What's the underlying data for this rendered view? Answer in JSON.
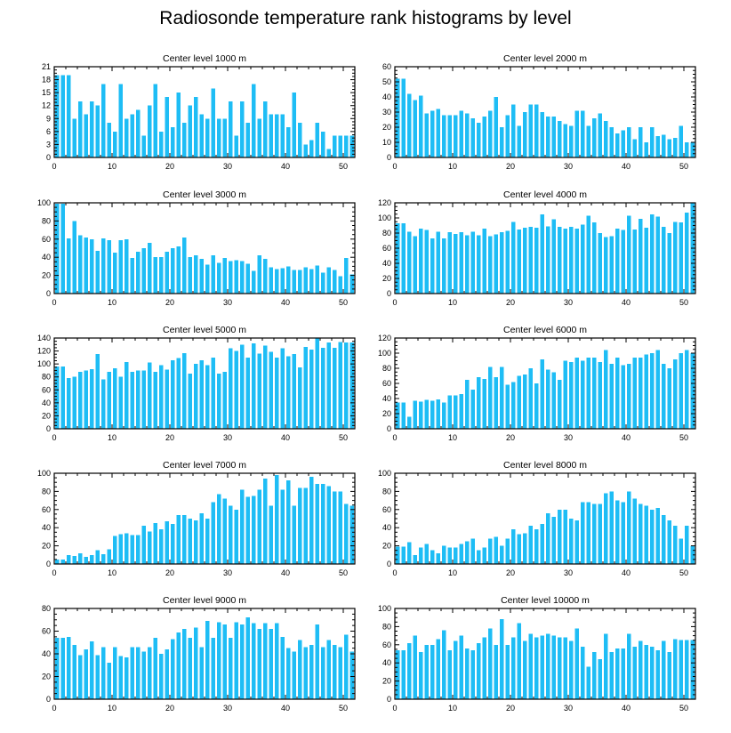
{
  "title": "Radiosonde temperature rank histograms by level",
  "colors": {
    "bar": "#1ebdf5",
    "frame": "#000000"
  },
  "chart_data": [
    {
      "type": "bar",
      "title": "Center level 1000 m",
      "xlim": [
        0,
        52
      ],
      "xticks": [
        0,
        10,
        20,
        30,
        40,
        50
      ],
      "ylim": [
        0,
        21
      ],
      "yticks": [
        0,
        3,
        6,
        9,
        12,
        15,
        18,
        21
      ],
      "x": [
        0,
        1,
        2,
        3,
        4,
        5,
        6,
        7,
        8,
        9,
        10,
        11,
        12,
        13,
        14,
        15,
        16,
        17,
        18,
        19,
        20,
        21,
        22,
        23,
        24,
        25,
        26,
        27,
        28,
        29,
        30,
        31,
        32,
        33,
        34,
        35,
        36,
        37,
        38,
        39,
        40,
        41,
        42,
        43,
        44,
        45,
        46,
        47,
        48,
        49,
        50,
        51
      ],
      "values": [
        19,
        19,
        19,
        9,
        13,
        10,
        13,
        12,
        17,
        8,
        6,
        17,
        9,
        10,
        11,
        5,
        12,
        17,
        6,
        14,
        7,
        15,
        8,
        12,
        14,
        10,
        9,
        16,
        9,
        9,
        13,
        5,
        13,
        8,
        17,
        9,
        13,
        10,
        10,
        10,
        7,
        15,
        8,
        3,
        4,
        8,
        6,
        2,
        5,
        5,
        5,
        5
      ]
    },
    {
      "type": "bar",
      "title": "Center level 2000 m",
      "xlim": [
        0,
        52
      ],
      "xticks": [
        0,
        10,
        20,
        30,
        40,
        50
      ],
      "ylim": [
        0,
        60
      ],
      "yticks": [
        0,
        10,
        20,
        30,
        40,
        50,
        60
      ],
      "x": [
        0,
        1,
        2,
        3,
        4,
        5,
        6,
        7,
        8,
        9,
        10,
        11,
        12,
        13,
        14,
        15,
        16,
        17,
        18,
        19,
        20,
        21,
        22,
        23,
        24,
        25,
        26,
        27,
        28,
        29,
        30,
        31,
        32,
        33,
        34,
        35,
        36,
        37,
        38,
        39,
        40,
        41,
        42,
        43,
        44,
        45,
        46,
        47,
        48,
        49,
        50,
        51
      ],
      "values": [
        52,
        52,
        42,
        38,
        41,
        29,
        31,
        32,
        28,
        28,
        28,
        31,
        29,
        26,
        23,
        27,
        31,
        40,
        20,
        28,
        35,
        21,
        30,
        35,
        35,
        30,
        27,
        27,
        24,
        22,
        21,
        31,
        31,
        21,
        26,
        29,
        24,
        20,
        16,
        18,
        20,
        12,
        20,
        10,
        20,
        14,
        15,
        12,
        13,
        21,
        10,
        10
      ]
    },
    {
      "type": "bar",
      "title": "Center level 3000 m",
      "xlim": [
        0,
        52
      ],
      "xticks": [
        0,
        10,
        20,
        30,
        40,
        50
      ],
      "ylim": [
        0,
        100
      ],
      "yticks": [
        0,
        20,
        40,
        60,
        80,
        100
      ],
      "x": [
        0,
        1,
        2,
        3,
        4,
        5,
        6,
        7,
        8,
        9,
        10,
        11,
        12,
        13,
        14,
        15,
        16,
        17,
        18,
        19,
        20,
        21,
        22,
        23,
        24,
        25,
        26,
        27,
        28,
        29,
        30,
        31,
        32,
        33,
        34,
        35,
        36,
        37,
        38,
        39,
        40,
        41,
        42,
        43,
        44,
        45,
        46,
        47,
        48,
        49,
        50,
        51
      ],
      "values": [
        99,
        99,
        61,
        80,
        64,
        62,
        60,
        47,
        61,
        59,
        45,
        59,
        60,
        39,
        46,
        50,
        56,
        40,
        40,
        46,
        50,
        52,
        62,
        40,
        42,
        38,
        32,
        42,
        34,
        39,
        36,
        37,
        36,
        33,
        25,
        42,
        38,
        29,
        27,
        28,
        30,
        26,
        26,
        29,
        27,
        31,
        23,
        29,
        26,
        19,
        39,
        21
      ]
    },
    {
      "type": "bar",
      "title": "Center level 4000 m",
      "xlim": [
        0,
        52
      ],
      "xticks": [
        0,
        10,
        20,
        30,
        40,
        50
      ],
      "ylim": [
        0,
        120
      ],
      "yticks": [
        0,
        20,
        40,
        60,
        80,
        100,
        120
      ],
      "x": [
        0,
        1,
        2,
        3,
        4,
        5,
        6,
        7,
        8,
        9,
        10,
        11,
        12,
        13,
        14,
        15,
        16,
        17,
        18,
        19,
        20,
        21,
        22,
        23,
        24,
        25,
        26,
        27,
        28,
        29,
        30,
        31,
        32,
        33,
        34,
        35,
        36,
        37,
        38,
        39,
        40,
        41,
        42,
        43,
        44,
        45,
        46,
        47,
        48,
        49,
        50,
        51
      ],
      "values": [
        93,
        93,
        82,
        76,
        86,
        84,
        73,
        82,
        73,
        81,
        79,
        81,
        77,
        82,
        77,
        86,
        76,
        78,
        81,
        83,
        95,
        85,
        87,
        88,
        87,
        105,
        89,
        98,
        88,
        86,
        88,
        86,
        91,
        103,
        94,
        80,
        75,
        76,
        86,
        84,
        103,
        85,
        99,
        87,
        105,
        102,
        88,
        80,
        95,
        94,
        107,
        120
      ]
    },
    {
      "type": "bar",
      "title": "Center level 5000 m",
      "xlim": [
        0,
        52
      ],
      "xticks": [
        0,
        10,
        20,
        30,
        40,
        50
      ],
      "ylim": [
        0,
        140
      ],
      "yticks": [
        0,
        20,
        40,
        60,
        80,
        100,
        120,
        140
      ],
      "x": [
        0,
        1,
        2,
        3,
        4,
        5,
        6,
        7,
        8,
        9,
        10,
        11,
        12,
        13,
        14,
        15,
        16,
        17,
        18,
        19,
        20,
        21,
        22,
        23,
        24,
        25,
        26,
        27,
        28,
        29,
        30,
        31,
        32,
        33,
        34,
        35,
        36,
        37,
        38,
        39,
        40,
        41,
        42,
        43,
        44,
        45,
        46,
        47,
        48,
        49,
        50,
        51
      ],
      "values": [
        96,
        96,
        78,
        80,
        88,
        90,
        92,
        115,
        76,
        88,
        93,
        80,
        103,
        88,
        90,
        90,
        102,
        88,
        98,
        91,
        106,
        109,
        117,
        85,
        100,
        106,
        98,
        110,
        85,
        88,
        124,
        120,
        130,
        110,
        132,
        116,
        128,
        119,
        110,
        124,
        112,
        115,
        95,
        126,
        122,
        140,
        125,
        133,
        125,
        134,
        133,
        133
      ]
    },
    {
      "type": "bar",
      "title": "Center level 6000 m",
      "xlim": [
        0,
        52
      ],
      "xticks": [
        0,
        10,
        20,
        30,
        40,
        50
      ],
      "ylim": [
        0,
        120
      ],
      "yticks": [
        0,
        20,
        40,
        60,
        80,
        100,
        120
      ],
      "x": [
        0,
        1,
        2,
        3,
        4,
        5,
        6,
        7,
        8,
        9,
        10,
        11,
        12,
        13,
        14,
        15,
        16,
        17,
        18,
        19,
        20,
        21,
        22,
        23,
        24,
        25,
        26,
        27,
        28,
        29,
        30,
        31,
        32,
        33,
        34,
        35,
        36,
        37,
        38,
        39,
        40,
        41,
        42,
        43,
        44,
        45,
        46,
        47,
        48,
        49,
        50,
        51
      ],
      "values": [
        35,
        35,
        16,
        37,
        36,
        38,
        37,
        39,
        35,
        44,
        44,
        46,
        65,
        52,
        68,
        66,
        82,
        68,
        82,
        58,
        62,
        70,
        72,
        80,
        60,
        92,
        78,
        75,
        65,
        90,
        88,
        94,
        90,
        94,
        94,
        88,
        104,
        86,
        94,
        84,
        86,
        94,
        94,
        98,
        100,
        104,
        86,
        80,
        92,
        100,
        104,
        100
      ]
    },
    {
      "type": "bar",
      "title": "Center level 7000 m",
      "xlim": [
        0,
        52
      ],
      "xticks": [
        0,
        10,
        20,
        30,
        40,
        50
      ],
      "ylim": [
        0,
        100
      ],
      "yticks": [
        0,
        20,
        40,
        60,
        80,
        100
      ],
      "x": [
        0,
        1,
        2,
        3,
        4,
        5,
        6,
        7,
        8,
        9,
        10,
        11,
        12,
        13,
        14,
        15,
        16,
        17,
        18,
        19,
        20,
        21,
        22,
        23,
        24,
        25,
        26,
        27,
        28,
        29,
        30,
        31,
        32,
        33,
        34,
        35,
        36,
        37,
        38,
        39,
        40,
        41,
        42,
        43,
        44,
        45,
        46,
        47,
        48,
        49,
        50,
        51
      ],
      "values": [
        5,
        5,
        10,
        9,
        12,
        8,
        10,
        15,
        11,
        16,
        31,
        33,
        34,
        32,
        32,
        42,
        36,
        45,
        38,
        47,
        44,
        54,
        54,
        50,
        48,
        56,
        50,
        68,
        77,
        72,
        64,
        60,
        82,
        74,
        75,
        82,
        94,
        64,
        98,
        82,
        92,
        64,
        84,
        84,
        96,
        88,
        88,
        86,
        80,
        80,
        66,
        64
      ]
    },
    {
      "type": "bar",
      "title": "Center level 8000 m",
      "xlim": [
        0,
        52
      ],
      "xticks": [
        0,
        10,
        20,
        30,
        40,
        50
      ],
      "ylim": [
        0,
        100
      ],
      "yticks": [
        0,
        20,
        40,
        60,
        80,
        100
      ],
      "x": [
        0,
        1,
        2,
        3,
        4,
        5,
        6,
        7,
        8,
        9,
        10,
        11,
        12,
        13,
        14,
        15,
        16,
        17,
        18,
        19,
        20,
        21,
        22,
        23,
        24,
        25,
        26,
        27,
        28,
        29,
        30,
        31,
        32,
        33,
        34,
        35,
        36,
        37,
        38,
        39,
        40,
        41,
        42,
        43,
        44,
        45,
        46,
        47,
        48,
        49,
        50,
        51
      ],
      "values": [
        19,
        19,
        24,
        10,
        18,
        22,
        15,
        12,
        20,
        18,
        18,
        22,
        25,
        28,
        15,
        18,
        28,
        30,
        20,
        28,
        38,
        33,
        34,
        42,
        38,
        44,
        56,
        52,
        60,
        60,
        50,
        48,
        68,
        68,
        66,
        66,
        78,
        80,
        70,
        68,
        80,
        72,
        66,
        64,
        60,
        62,
        54,
        48,
        42,
        28,
        42,
        20
      ]
    },
    {
      "type": "bar",
      "title": "Center level 9000 m",
      "xlim": [
        0,
        52
      ],
      "xticks": [
        0,
        10,
        20,
        30,
        40,
        50
      ],
      "ylim": [
        0,
        80
      ],
      "yticks": [
        0,
        20,
        40,
        60,
        80
      ],
      "x": [
        0,
        1,
        2,
        3,
        4,
        5,
        6,
        7,
        8,
        9,
        10,
        11,
        12,
        13,
        14,
        15,
        16,
        17,
        18,
        19,
        20,
        21,
        22,
        23,
        24,
        25,
        26,
        27,
        28,
        29,
        30,
        31,
        32,
        33,
        34,
        35,
        36,
        37,
        38,
        39,
        40,
        41,
        42,
        43,
        44,
        45,
        46,
        47,
        48,
        49,
        50,
        51
      ],
      "values": [
        54,
        54,
        55,
        48,
        39,
        44,
        51,
        39,
        46,
        32,
        46,
        38,
        37,
        46,
        46,
        42,
        46,
        54,
        40,
        44,
        53,
        59,
        62,
        54,
        63,
        46,
        69,
        54,
        68,
        66,
        54,
        68,
        66,
        72,
        67,
        62,
        67,
        62,
        67,
        55,
        45,
        42,
        52,
        46,
        48,
        66,
        46,
        52,
        48,
        46,
        57,
        42
      ]
    },
    {
      "type": "bar",
      "title": "Center level 10000 m",
      "xlim": [
        0,
        52
      ],
      "xticks": [
        0,
        10,
        20,
        30,
        40,
        50
      ],
      "ylim": [
        0,
        100
      ],
      "yticks": [
        0,
        20,
        40,
        60,
        80,
        100
      ],
      "x": [
        0,
        1,
        2,
        3,
        4,
        5,
        6,
        7,
        8,
        9,
        10,
        11,
        12,
        13,
        14,
        15,
        16,
        17,
        18,
        19,
        20,
        21,
        22,
        23,
        24,
        25,
        26,
        27,
        28,
        29,
        30,
        31,
        32,
        33,
        34,
        35,
        36,
        37,
        38,
        39,
        40,
        41,
        42,
        43,
        44,
        45,
        46,
        47,
        48,
        49,
        50,
        51
      ],
      "values": [
        54,
        54,
        62,
        70,
        52,
        60,
        60,
        66,
        76,
        54,
        64,
        70,
        56,
        54,
        62,
        68,
        78,
        60,
        88,
        60,
        68,
        84,
        64,
        72,
        68,
        70,
        72,
        70,
        68,
        68,
        64,
        78,
        58,
        36,
        52,
        44,
        72,
        52,
        56,
        56,
        72,
        58,
        64,
        60,
        58,
        54,
        64,
        52,
        66,
        65,
        65,
        65
      ]
    }
  ]
}
